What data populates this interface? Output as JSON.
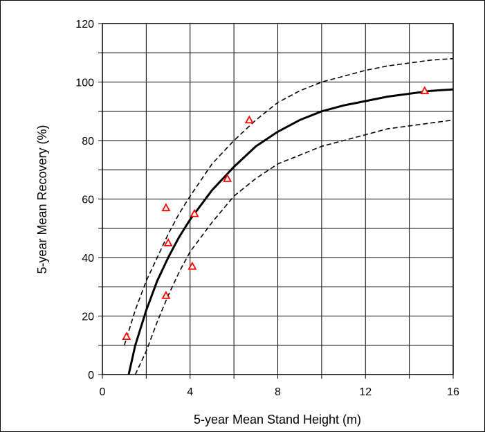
{
  "chart_data": {
    "type": "scatter",
    "title": "",
    "xlabel": "5-year Mean Stand Height (m)",
    "ylabel": "5-year Mean Recovery (%)",
    "xlim": [
      0,
      16
    ],
    "ylim": [
      0,
      120
    ],
    "x_ticks": [
      0,
      4,
      8,
      12,
      16
    ],
    "x_tick_labels": [
      "0",
      "4",
      "8",
      "12",
      "16"
    ],
    "y_ticks": [
      0,
      20,
      40,
      60,
      80,
      100,
      120
    ],
    "y_tick_labels": [
      "0",
      "20",
      "40",
      "60",
      "80",
      "100",
      "120"
    ],
    "grid": true,
    "series": [
      {
        "kind": "points",
        "marker": "open-triangle",
        "color": "#ff0000",
        "points": [
          [
            1.1,
            13
          ],
          [
            2.9,
            27
          ],
          [
            2.9,
            57
          ],
          [
            3.0,
            45
          ],
          [
            4.1,
            37
          ],
          [
            4.2,
            55
          ],
          [
            5.7,
            67
          ],
          [
            6.7,
            87
          ],
          [
            14.7,
            97
          ]
        ]
      },
      {
        "kind": "fitted-line",
        "style": "solid",
        "color": "#000000",
        "points": [
          [
            1.2,
            0
          ],
          [
            1.5,
            10
          ],
          [
            2.0,
            22
          ],
          [
            2.5,
            32
          ],
          [
            3.0,
            40
          ],
          [
            3.5,
            47
          ],
          [
            4.0,
            53
          ],
          [
            5.0,
            63
          ],
          [
            6.0,
            71
          ],
          [
            7.0,
            78
          ],
          [
            8.0,
            83
          ],
          [
            9.0,
            87
          ],
          [
            10.0,
            90
          ],
          [
            11.0,
            92
          ],
          [
            12.0,
            93.5
          ],
          [
            13.0,
            95
          ],
          [
            14.0,
            96
          ],
          [
            15.0,
            97
          ],
          [
            16.0,
            97.5
          ]
        ]
      },
      {
        "kind": "upper-bound",
        "style": "dashed",
        "color": "#000000",
        "points": [
          [
            1.0,
            10
          ],
          [
            1.5,
            22
          ],
          [
            2.0,
            32
          ],
          [
            2.5,
            40
          ],
          [
            3.0,
            48
          ],
          [
            3.5,
            55
          ],
          [
            4.0,
            61
          ],
          [
            5.0,
            72
          ],
          [
            6.0,
            80
          ],
          [
            7.0,
            87
          ],
          [
            8.0,
            93
          ],
          [
            9.0,
            97
          ],
          [
            10.0,
            100
          ],
          [
            11.0,
            102
          ],
          [
            12.0,
            104
          ],
          [
            13.0,
            105.5
          ],
          [
            14.0,
            106.5
          ],
          [
            15.0,
            107.5
          ],
          [
            16.0,
            108
          ]
        ]
      },
      {
        "kind": "lower-bound",
        "style": "dashed",
        "color": "#000000",
        "points": [
          [
            1.5,
            0
          ],
          [
            2.0,
            8
          ],
          [
            2.5,
            18
          ],
          [
            3.0,
            27
          ],
          [
            3.5,
            35
          ],
          [
            4.0,
            42
          ],
          [
            5.0,
            52
          ],
          [
            6.0,
            61
          ],
          [
            7.0,
            67
          ],
          [
            8.0,
            72
          ],
          [
            9.0,
            75
          ],
          [
            10.0,
            78
          ],
          [
            11.0,
            80
          ],
          [
            12.0,
            82
          ],
          [
            13.0,
            84
          ],
          [
            14.0,
            85
          ],
          [
            15.0,
            86
          ],
          [
            16.0,
            87
          ]
        ]
      }
    ]
  }
}
